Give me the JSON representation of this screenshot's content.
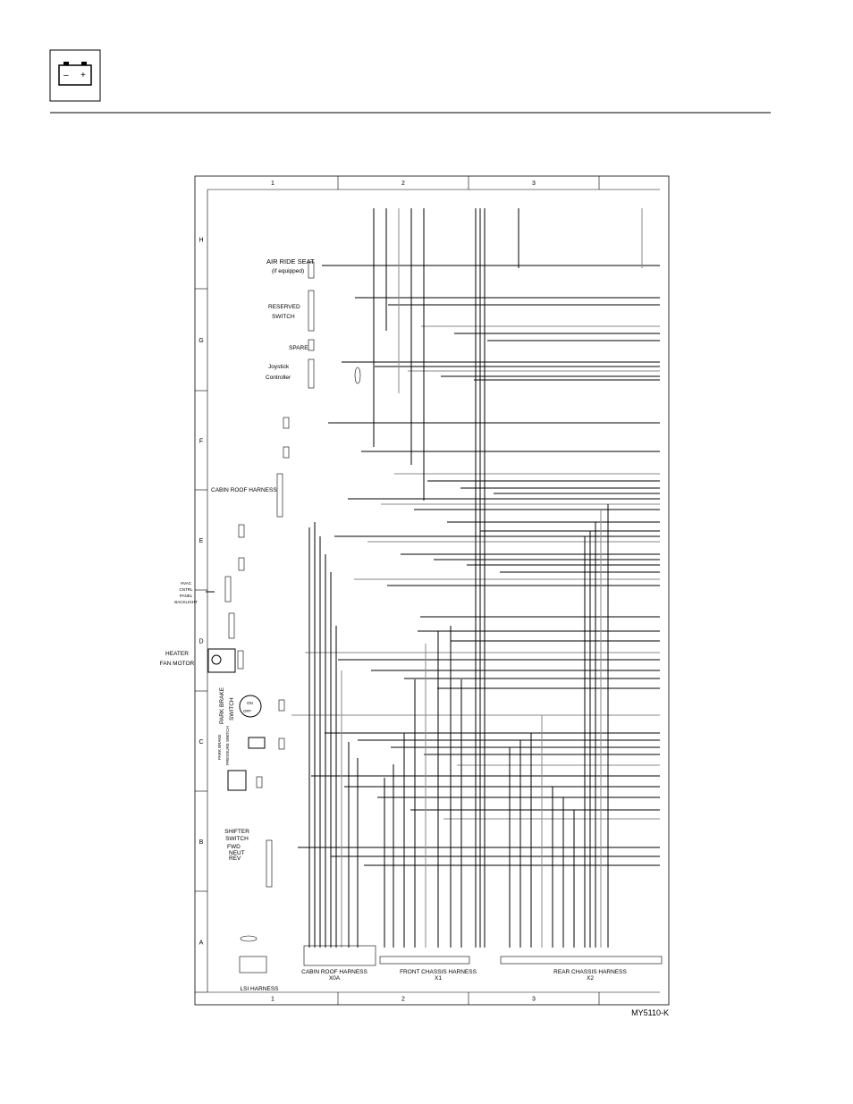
{
  "frame": {
    "columns": [
      "1",
      "2",
      "3"
    ],
    "rows": [
      "H",
      "G",
      "F",
      "E",
      "D",
      "C",
      "B",
      "A"
    ]
  },
  "components": {
    "air_ride_seat": "AIR RIDE SEAT",
    "air_ride_note": "(if equipped)",
    "reserved": "RESERVED",
    "reserved_switch": "SWITCH",
    "spare": "SPARE",
    "joystick": "Joystick",
    "controller": "Controller",
    "cabin_roof": "CABIN ROOF HARNESS",
    "hvac": [
      "HVAC",
      "CNTRL",
      "PANEL",
      "BACKLIGHT"
    ],
    "heater": "HEATER",
    "fan_motor": "FAN MOTOR",
    "park_brake": [
      "PARK BRAKE",
      "SWITCH"
    ],
    "park_brake_pressure": [
      "PARK BRAKE",
      "PRESSURE SWITCH"
    ],
    "shifter": "SHIFTER",
    "shifter_switch": "SWITCH",
    "fwd": "FWD",
    "neut": "NEUT",
    "rev": "REV",
    "off": "OFF",
    "on": "ON"
  },
  "harnesses": {
    "lsi": "LSI HARNESS",
    "cabin_roof": [
      "CABIN ROOF HARNESS",
      "X0A"
    ],
    "front_chassis": [
      "FRONT CHASSIS HARNESS",
      "X1"
    ],
    "rear_chassis": [
      "REAR CHASSIS HARNESS",
      "X2"
    ]
  },
  "figure_id": "MY5110-K"
}
